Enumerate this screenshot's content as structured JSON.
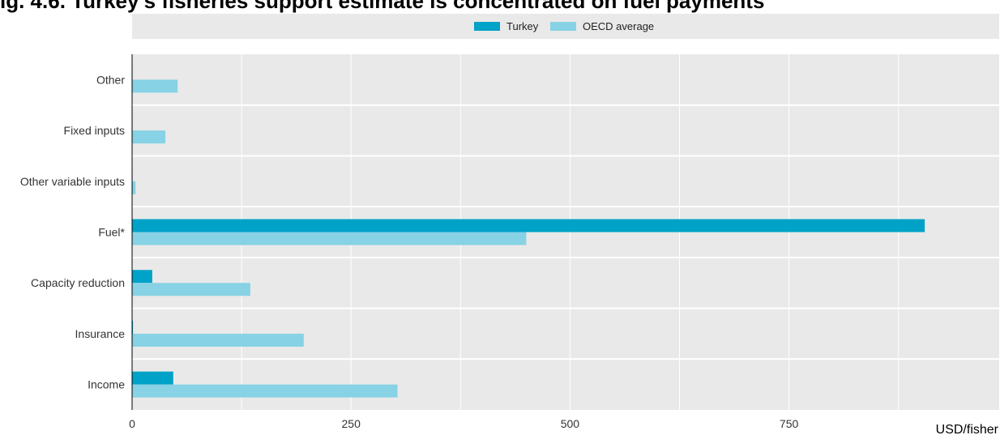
{
  "title": "ig. 4.6. Turkey's fisheries support estimate is concentrated on fuel payments",
  "unit_label": "USD/fisher",
  "chart_data": {
    "type": "bar",
    "orientation": "horizontal",
    "categories": [
      "Other",
      "Fixed inputs",
      "Other variable inputs",
      "Fuel*",
      "Capacity reduction",
      "Insurance",
      "Income"
    ],
    "series": [
      {
        "name": "Turkey",
        "color": "#00a2c7",
        "values": [
          0.5,
          0.5,
          0.5,
          905,
          23,
          1,
          47
        ]
      },
      {
        "name": "OECD average",
        "color": "#87d2e4",
        "values": [
          52,
          38,
          4,
          450,
          135,
          196,
          303
        ]
      }
    ],
    "xticks": [
      0,
      250,
      500,
      750
    ],
    "xlim": [
      0,
      990
    ],
    "grid": true,
    "legend_position": "top"
  }
}
